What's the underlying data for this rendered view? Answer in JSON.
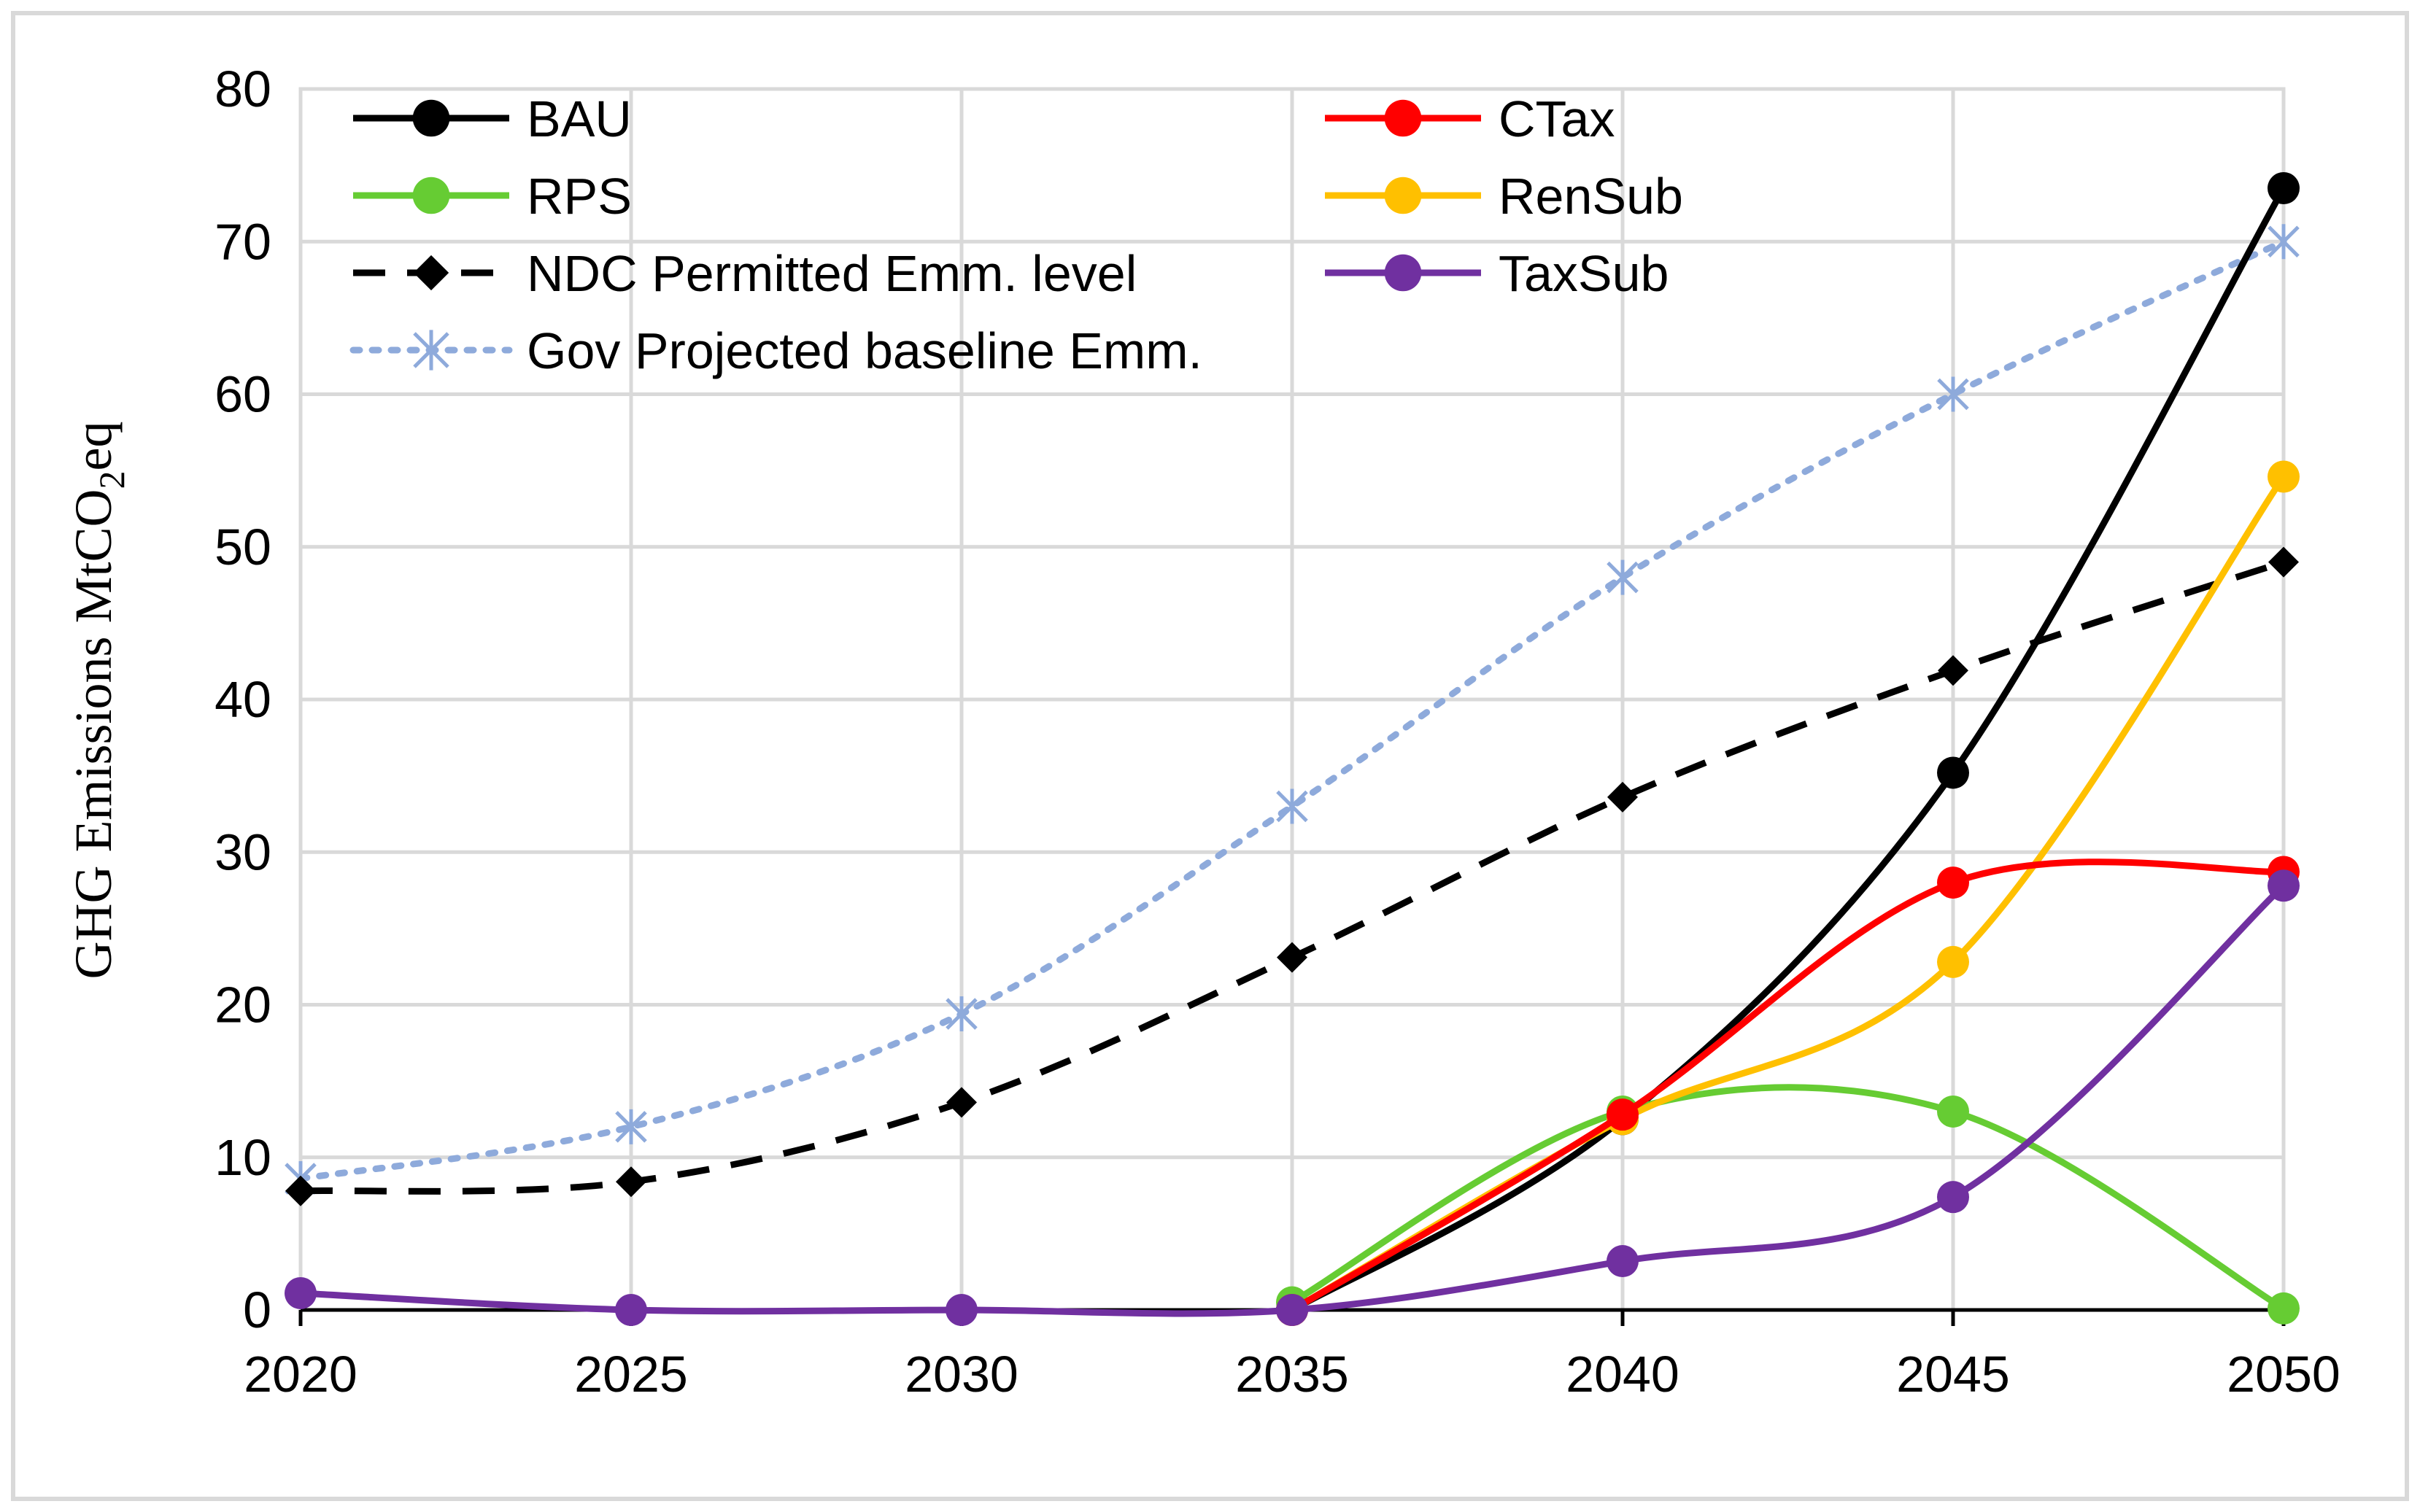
{
  "chart_data": {
    "type": "line",
    "title": "",
    "xlabel": "",
    "ylabel": "GHG Emissions MtCO",
    "ylabel_sub": "2",
    "ylabel_suffix": "eq",
    "x": [
      2020,
      2025,
      2030,
      2035,
      2040,
      2045,
      2050
    ],
    "xlim": [
      2020,
      2050
    ],
    "ylim": [
      0,
      80
    ],
    "yticks": [
      0,
      10,
      20,
      30,
      40,
      50,
      60,
      70,
      80
    ],
    "grid": true,
    "legend_position": "top-left",
    "series": [
      {
        "name": "BAU",
        "color": "#000000",
        "style": "solid",
        "marker": "circle",
        "values": [
          null,
          null,
          null,
          0,
          12.5,
          35.2,
          73.5
        ]
      },
      {
        "name": "CTax",
        "color": "#ff0000",
        "style": "solid",
        "marker": "circle",
        "values": [
          null,
          null,
          null,
          0,
          12.8,
          28.0,
          28.7
        ]
      },
      {
        "name": "RPS",
        "color": "#66cc33",
        "style": "solid",
        "marker": "circle",
        "values": [
          null,
          null,
          null,
          0.5,
          13.0,
          13.0,
          0.1
        ]
      },
      {
        "name": "RenSub",
        "color": "#ffc000",
        "style": "solid",
        "marker": "circle",
        "values": [
          null,
          null,
          null,
          0,
          12.5,
          22.8,
          54.6
        ]
      },
      {
        "name": "NDC Permitted Emm. level",
        "color": "#000000",
        "style": "dashed",
        "marker": "diamond",
        "values": [
          7.8,
          8.4,
          13.6,
          23.1,
          33.6,
          41.9,
          49.0
        ]
      },
      {
        "name": "TaxSub",
        "color": "#7030a0",
        "style": "solid",
        "marker": "circle",
        "values": [
          1.1,
          0.0,
          0.0,
          0.0,
          3.2,
          7.4,
          27.8
        ]
      },
      {
        "name": "Gov Projected baseline Emm.",
        "color": "#8eaadb",
        "style": "dotted",
        "marker": "asterisk",
        "values": [
          8.6,
          12.0,
          19.4,
          33.0,
          48.0,
          60.0,
          70.0
        ]
      }
    ]
  }
}
